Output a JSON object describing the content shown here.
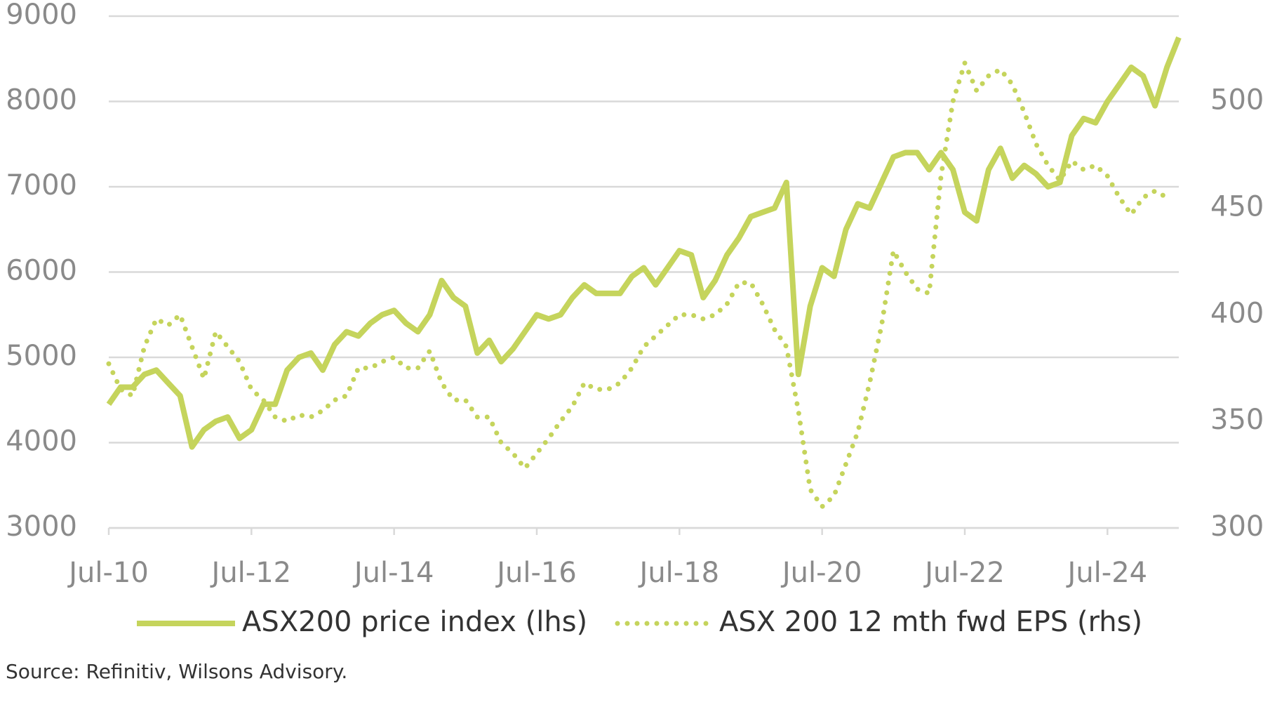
{
  "chart_data": {
    "type": "line",
    "categories": [
      "Jul-10",
      null,
      null,
      null,
      null,
      null,
      null,
      null,
      null,
      null,
      null,
      null,
      "Jul-12",
      null,
      null,
      null,
      null,
      null,
      null,
      null,
      null,
      null,
      null,
      null,
      "Jul-14",
      null,
      null,
      null,
      null,
      null,
      null,
      null,
      null,
      null,
      null,
      null,
      "Jul-16",
      null,
      null,
      null,
      null,
      null,
      null,
      null,
      null,
      null,
      null,
      null,
      "Jul-18",
      null,
      null,
      null,
      null,
      null,
      null,
      null,
      null,
      null,
      null,
      null,
      "Jul-20",
      null,
      null,
      null,
      null,
      null,
      null,
      null,
      null,
      null,
      null,
      null,
      "Jul-22",
      null,
      null,
      null,
      null,
      null,
      null,
      null,
      null,
      null,
      null,
      null,
      "Jul-24",
      null,
      null,
      null,
      null,
      null,
      null
    ],
    "series": [
      {
        "name": "ASX200 price index (lhs)",
        "color": "#c5d45c",
        "style": "solid",
        "values": [
          4450,
          4650,
          4650,
          4800,
          4850,
          4700,
          4550,
          3950,
          4150,
          4250,
          4300,
          4050,
          4150,
          4450,
          4450,
          4850,
          5000,
          5050,
          4850,
          5150,
          5300,
          5250,
          5400,
          5500,
          5550,
          5400,
          5300,
          5500,
          5900,
          5700,
          5600,
          5050,
          5200,
          4950,
          5100,
          5300,
          5500,
          5450,
          5500,
          5700,
          5850,
          5750,
          5750,
          5750,
          5950,
          6050,
          5850,
          6050,
          6250,
          6200,
          5700,
          5900,
          6200,
          6400,
          6650,
          6700,
          6750,
          7050,
          4800,
          5600,
          6050,
          5950,
          6500,
          6800,
          6750,
          7050,
          7350,
          7400,
          7400,
          7200,
          7400,
          7200,
          6700,
          6600,
          7200,
          7450,
          7100,
          7250,
          7150,
          7000,
          7050,
          7600,
          7800,
          7750,
          8000,
          8200,
          8400,
          8300,
          7950,
          8400,
          8750
        ]
      },
      {
        "name": "ASX 200 12 mth fwd EPS (rhs)",
        "color": "#c5d45c",
        "style": "dotted",
        "axis": "y2",
        "values": [
          377,
          365,
          362,
          385,
          398,
          395,
          400,
          385,
          370,
          392,
          385,
          378,
          365,
          360,
          352,
          350,
          353,
          352,
          355,
          360,
          362,
          375,
          375,
          378,
          380,
          375,
          375,
          383,
          368,
          360,
          360,
          352,
          352,
          340,
          335,
          328,
          335,
          342,
          350,
          357,
          368,
          365,
          365,
          368,
          375,
          385,
          390,
          395,
          400,
          400,
          398,
          400,
          405,
          415,
          415,
          405,
          393,
          385,
          355,
          318,
          310,
          315,
          330,
          345,
          368,
          395,
          430,
          420,
          412,
          410,
          465,
          500,
          518,
          505,
          512,
          515,
          508,
          495,
          480,
          470,
          463,
          472,
          468,
          470,
          465,
          455,
          447,
          455,
          458,
          455,
          null
        ]
      }
    ],
    "ylim": [
      3000,
      9000
    ],
    "yticks": [
      3000,
      4000,
      5000,
      6000,
      7000,
      8000,
      9000
    ],
    "y2lim": [
      300,
      540
    ],
    "y2ticks": [
      300,
      350,
      400,
      450,
      500
    ],
    "grid": true,
    "legend": "bottom",
    "source": "Source: Refinitiv, Wilsons Advisory."
  }
}
